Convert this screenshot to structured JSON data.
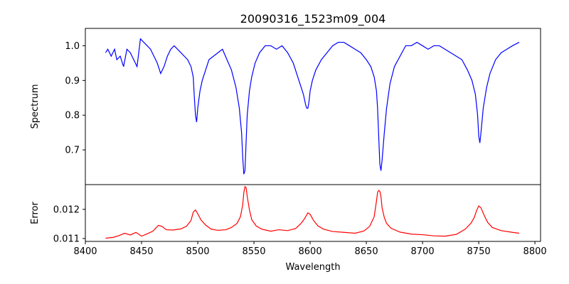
{
  "chart_data": [
    {
      "type": "line",
      "title": "20090316_1523m09_004",
      "ylabel": "Spectrum",
      "xlabel": "",
      "xlim": [
        8400,
        8805
      ],
      "ylim": [
        0.6,
        1.05
      ],
      "yticks": [
        0.7,
        0.8,
        0.9,
        1.0
      ],
      "ytick_labels": [
        "0.7",
        "0.8",
        "0.9",
        "1.0"
      ],
      "series": [
        {
          "name": "spectrum",
          "color": "#0000ff",
          "x": [
            8418,
            8420,
            8423,
            8426,
            8428,
            8431,
            8434,
            8437,
            8440,
            8443,
            8446,
            8449,
            8452,
            8455,
            8458,
            8461,
            8464,
            8467,
            8470,
            8473,
            8476,
            8479,
            8482,
            8485,
            8488,
            8491,
            8494,
            8496,
            8497,
            8498,
            8499,
            8500,
            8502,
            8504,
            8507,
            8510,
            8514,
            8518,
            8522,
            8526,
            8530,
            8534,
            8537,
            8539,
            8540,
            8541,
            8542,
            8543,
            8544,
            8546,
            8548,
            8551,
            8555,
            8560,
            8565,
            8570,
            8575,
            8580,
            8585,
            8590,
            8594,
            8596,
            8597,
            8598,
            8599,
            8600,
            8602,
            8605,
            8610,
            8615,
            8620,
            8625,
            8630,
            8635,
            8640,
            8645,
            8650,
            8654,
            8657,
            8659,
            8660,
            8661,
            8662,
            8663,
            8664,
            8666,
            8668,
            8671,
            8675,
            8680,
            8685,
            8690,
            8695,
            8700,
            8705,
            8710,
            8715,
            8720,
            8725,
            8730,
            8735,
            8740,
            8744,
            8747,
            8749,
            8750,
            8751,
            8752,
            8754,
            8757,
            8760,
            8765,
            8770,
            8775,
            8780,
            8786
          ],
          "values": [
            0.98,
            0.99,
            0.97,
            0.99,
            0.96,
            0.97,
            0.94,
            0.99,
            0.98,
            0.96,
            0.94,
            1.02,
            1.01,
            1.0,
            0.99,
            0.97,
            0.95,
            0.92,
            0.94,
            0.97,
            0.99,
            1.0,
            0.99,
            0.98,
            0.97,
            0.96,
            0.94,
            0.91,
            0.85,
            0.8,
            0.78,
            0.82,
            0.87,
            0.9,
            0.93,
            0.96,
            0.97,
            0.98,
            0.99,
            0.96,
            0.93,
            0.88,
            0.82,
            0.75,
            0.68,
            0.63,
            0.64,
            0.72,
            0.8,
            0.87,
            0.91,
            0.95,
            0.98,
            1.0,
            1.0,
            0.99,
            1.0,
            0.98,
            0.95,
            0.9,
            0.86,
            0.83,
            0.82,
            0.82,
            0.84,
            0.87,
            0.9,
            0.93,
            0.96,
            0.98,
            1.0,
            1.01,
            1.01,
            1.0,
            0.99,
            0.98,
            0.96,
            0.94,
            0.91,
            0.87,
            0.82,
            0.74,
            0.66,
            0.64,
            0.67,
            0.75,
            0.82,
            0.89,
            0.94,
            0.97,
            1.0,
            1.0,
            1.01,
            1.0,
            0.99,
            1.0,
            1.0,
            0.99,
            0.98,
            0.97,
            0.96,
            0.93,
            0.9,
            0.86,
            0.8,
            0.74,
            0.72,
            0.75,
            0.82,
            0.88,
            0.92,
            0.96,
            0.98,
            0.99,
            1.0,
            1.01
          ]
        }
      ]
    },
    {
      "type": "line",
      "title": "",
      "ylabel": "Error",
      "xlabel": "Wavelength",
      "xlim": [
        8400,
        8805
      ],
      "ylim": [
        0.0109,
        0.01285
      ],
      "yticks": [
        0.011,
        0.012
      ],
      "ytick_labels": [
        "0.011",
        "0.012"
      ],
      "xticks": [
        8400,
        8450,
        8500,
        8550,
        8600,
        8650,
        8700,
        8750,
        8800
      ],
      "xtick_labels": [
        "8400",
        "8450",
        "8500",
        "8550",
        "8600",
        "8650",
        "8700",
        "8750",
        "8800"
      ],
      "series": [
        {
          "name": "error",
          "color": "#ff0000",
          "x": [
            8418,
            8425,
            8430,
            8435,
            8440,
            8445,
            8450,
            8455,
            8460,
            8465,
            8468,
            8472,
            8478,
            8485,
            8490,
            8494,
            8496,
            8498,
            8500,
            8503,
            8507,
            8512,
            8518,
            8525,
            8530,
            8535,
            8538,
            8540,
            8541,
            8542,
            8543,
            8544,
            8546,
            8548,
            8552,
            8557,
            8565,
            8572,
            8580,
            8587,
            8592,
            8595,
            8598,
            8600,
            8603,
            8607,
            8612,
            8620,
            8630,
            8640,
            8648,
            8653,
            8657,
            8659,
            8660,
            8661,
            8662,
            8663,
            8664,
            8666,
            8668,
            8672,
            8680,
            8690,
            8700,
            8710,
            8720,
            8730,
            8738,
            8743,
            8746,
            8748,
            8750,
            8752,
            8755,
            8758,
            8762,
            8770,
            8780,
            8786
          ],
          "values": [
            0.01101,
            0.01104,
            0.0111,
            0.01118,
            0.01112,
            0.01121,
            0.01108,
            0.01116,
            0.01125,
            0.01145,
            0.01142,
            0.0113,
            0.01129,
            0.01133,
            0.01142,
            0.01162,
            0.0119,
            0.01198,
            0.01185,
            0.01163,
            0.01146,
            0.01132,
            0.01128,
            0.0113,
            0.01138,
            0.01152,
            0.01175,
            0.01215,
            0.01258,
            0.01278,
            0.01275,
            0.01245,
            0.01198,
            0.01165,
            0.01143,
            0.01132,
            0.01125,
            0.0113,
            0.01127,
            0.01134,
            0.01152,
            0.01168,
            0.01188,
            0.01183,
            0.01162,
            0.01143,
            0.01132,
            0.01124,
            0.01121,
            0.01118,
            0.01126,
            0.01142,
            0.01175,
            0.01228,
            0.01258,
            0.01265,
            0.01262,
            0.01245,
            0.01205,
            0.01172,
            0.01152,
            0.01135,
            0.01122,
            0.01115,
            0.01113,
            0.01109,
            0.01108,
            0.01114,
            0.01132,
            0.01152,
            0.01172,
            0.01195,
            0.01212,
            0.01205,
            0.01178,
            0.01155,
            0.01138,
            0.01127,
            0.01121,
            0.01118
          ]
        }
      ]
    }
  ]
}
